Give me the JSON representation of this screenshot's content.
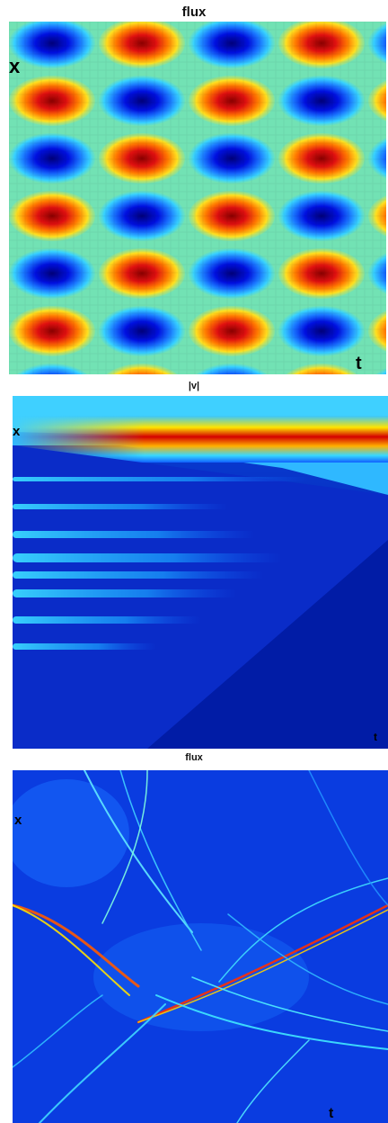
{
  "panels": [
    {
      "title": "flux",
      "x_label": "x",
      "t_label": "t"
    },
    {
      "title": "|v|",
      "x_label": "x",
      "t_label": "t"
    },
    {
      "title": "flux",
      "x_label": "x",
      "t_label": "t"
    }
  ],
  "colormap": [
    "#00008f",
    "#0000ff",
    "#00ffff",
    "#ffff00",
    "#ff0000",
    "#800000"
  ]
}
